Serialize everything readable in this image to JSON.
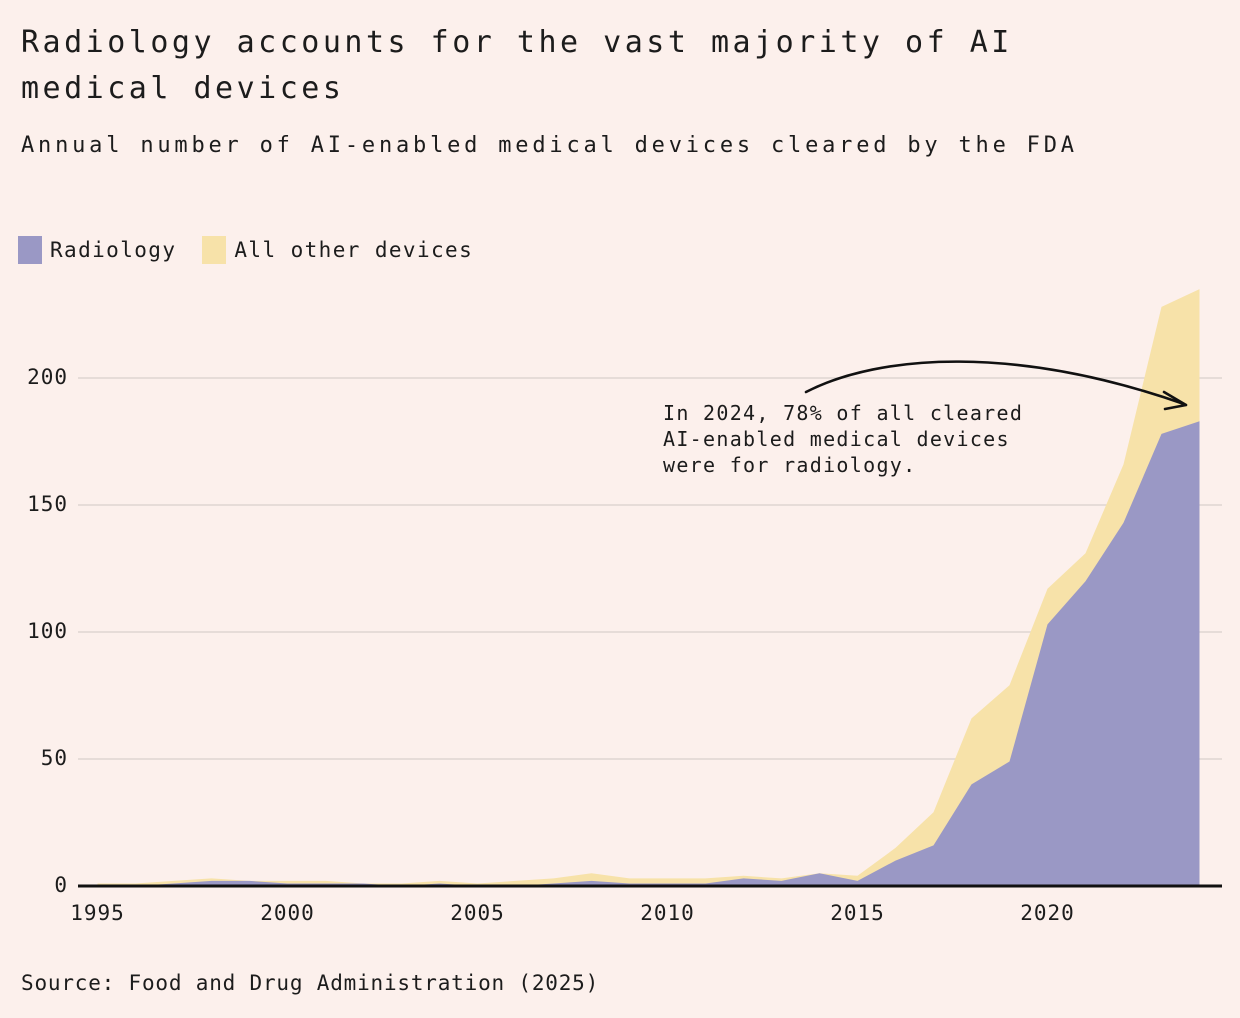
{
  "title": "Radiology accounts for the vast majority of AI medical devices",
  "subtitle": "Annual number of AI-enabled medical devices cleared by the FDA",
  "source": "Source: Food and Drug Administration (2025)",
  "legend": [
    {
      "label": "Radiology",
      "color": "#9a98c5"
    },
    {
      "label": "All other devices",
      "color": "#f7e2a9"
    }
  ],
  "annotation": {
    "lines": [
      "In 2024, 78% of all cleared",
      "AI-enabled medical devices",
      "were for radiology."
    ]
  },
  "colors": {
    "background": "#fcf0ec",
    "radiology": "#9a98c5",
    "other_devices": "#f7e2a9",
    "gridline": "#ded6d2",
    "axis": "#111111",
    "text": "#1c1c1c",
    "arrow": "#111111"
  },
  "chart_data": {
    "type": "area",
    "stacked": true,
    "title": "Annual number of AI-enabled medical devices cleared by the FDA",
    "xlabel": "",
    "ylabel": "",
    "x": [
      1995,
      1996,
      1997,
      1998,
      1999,
      2000,
      2001,
      2002,
      2003,
      2004,
      2005,
      2006,
      2007,
      2008,
      2009,
      2010,
      2011,
      2012,
      2013,
      2014,
      2015,
      2016,
      2017,
      2018,
      2019,
      2020,
      2021,
      2022,
      2023,
      2024
    ],
    "series": [
      {
        "name": "Radiology",
        "color": "#9a98c5",
        "values": [
          0,
          0,
          1,
          2,
          2,
          1,
          1,
          1,
          0,
          1,
          0,
          0,
          1,
          2,
          1,
          1,
          1,
          3,
          2,
          5,
          2,
          10,
          16,
          40,
          49,
          103,
          120,
          143,
          178,
          183
        ]
      },
      {
        "name": "All other devices",
        "color": "#f7e2a9",
        "values": [
          1,
          1,
          1,
          1,
          0,
          1,
          1,
          0,
          1,
          1,
          1,
          2,
          2,
          3,
          2,
          2,
          2,
          1,
          1,
          0,
          2,
          5,
          13,
          26,
          30,
          14,
          11,
          23,
          50,
          52
        ]
      }
    ],
    "xticks": [
      1995,
      2000,
      2005,
      2010,
      2015,
      2020
    ],
    "yticks": [
      0,
      50,
      100,
      150,
      200
    ],
    "ylim": [
      0,
      240
    ],
    "grid": "horizontal",
    "legend_position": "top-left",
    "annotation_target": {
      "year": 2024,
      "series": "Radiology",
      "value": 183,
      "total": 235
    }
  }
}
